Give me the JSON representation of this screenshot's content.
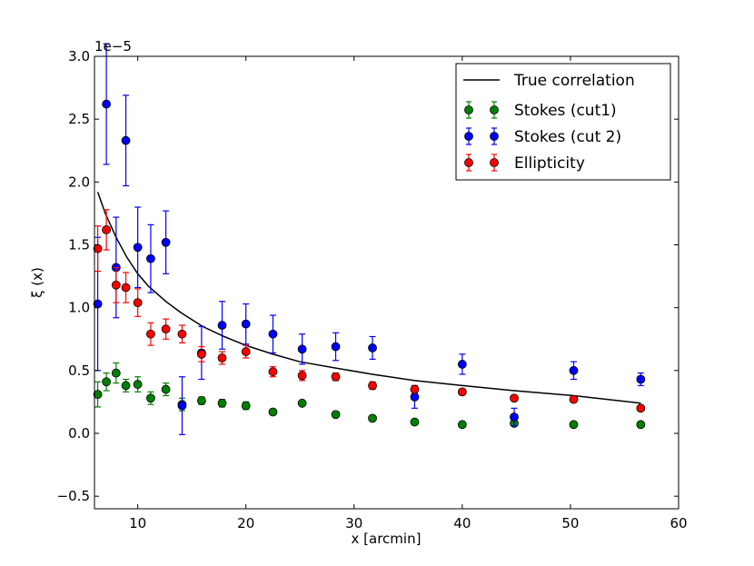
{
  "chart_data": {
    "type": "scatter",
    "title": "",
    "xlabel": "x [arcmin]",
    "ylabel": "ξ (x)",
    "offset_text": "1e−5",
    "xlim": [
      6,
      60
    ],
    "ylim": [
      -0.6,
      3.0
    ],
    "x_ticks": [
      10,
      20,
      30,
      40,
      50,
      60
    ],
    "y_ticks": [
      -0.5,
      0.0,
      0.5,
      1.0,
      1.5,
      2.0,
      2.5,
      3.0
    ],
    "y_tick_labels": [
      "−0.5",
      "0.0",
      "0.5",
      "1.0",
      "1.5",
      "2.0",
      "2.5",
      "3.0"
    ],
    "legend_position": "top-right",
    "line": {
      "name": "True correlation",
      "color": "#000000",
      "x": [
        6.3,
        7,
        8,
        9,
        10,
        11,
        12.6,
        14,
        16,
        18,
        20,
        22.5,
        25,
        28.3,
        31.7,
        35.6,
        40,
        44.8,
        50.3,
        56.5
      ],
      "y": [
        1.92,
        1.75,
        1.56,
        1.4,
        1.27,
        1.17,
        1.05,
        0.96,
        0.85,
        0.77,
        0.7,
        0.63,
        0.57,
        0.52,
        0.47,
        0.42,
        0.38,
        0.34,
        0.3,
        0.24
      ]
    },
    "series": [
      {
        "name": "Stokes (cut1)",
        "color": "#008000",
        "x": [
          6.3,
          7.1,
          8.0,
          8.9,
          10.0,
          11.2,
          12.6,
          14.1,
          15.9,
          17.8,
          20.0,
          22.5,
          25.2,
          28.3,
          31.7,
          35.6,
          40.0,
          44.8,
          50.3,
          56.5
        ],
        "y": [
          0.31,
          0.41,
          0.48,
          0.38,
          0.39,
          0.28,
          0.35,
          0.23,
          0.26,
          0.24,
          0.22,
          0.17,
          0.24,
          0.15,
          0.12,
          0.09,
          0.07,
          0.08,
          0.07,
          0.07
        ],
        "err": [
          0.1,
          0.07,
          0.08,
          0.05,
          0.06,
          0.05,
          0.05,
          0.05,
          0.03,
          0.03,
          0.03,
          0.02,
          0.02,
          0.02,
          0.02,
          0.02,
          0.01,
          0.01,
          0.01,
          0.01
        ]
      },
      {
        "name": "Stokes (cut 2)",
        "color": "#0000ff",
        "x": [
          6.3,
          7.1,
          8.0,
          8.9,
          10.0,
          11.2,
          12.6,
          14.1,
          15.9,
          17.8,
          20.0,
          22.5,
          25.2,
          28.3,
          31.7,
          35.6,
          40.0,
          44.8,
          50.3,
          56.5
        ],
        "y": [
          1.03,
          2.62,
          1.32,
          2.33,
          1.48,
          1.39,
          1.52,
          0.22,
          0.64,
          0.86,
          0.87,
          0.79,
          0.67,
          0.69,
          0.68,
          0.29,
          0.55,
          0.13,
          0.5,
          0.43
        ],
        "err": [
          0.53,
          0.48,
          0.4,
          0.36,
          0.32,
          0.27,
          0.25,
          0.23,
          0.21,
          0.19,
          0.16,
          0.15,
          0.12,
          0.11,
          0.09,
          0.09,
          0.08,
          0.07,
          0.07,
          0.05
        ]
      },
      {
        "name": "Ellipticity",
        "color": "#ff0000",
        "x": [
          6.3,
          7.1,
          8.0,
          8.9,
          10.0,
          11.2,
          12.6,
          14.1,
          15.9,
          17.8,
          20.0,
          22.5,
          25.2,
          28.3,
          31.7,
          35.6,
          40.0,
          44.8,
          50.3,
          56.5
        ],
        "y": [
          1.47,
          1.62,
          1.18,
          1.16,
          1.04,
          0.79,
          0.83,
          0.79,
          0.63,
          0.6,
          0.65,
          0.49,
          0.46,
          0.45,
          0.38,
          0.35,
          0.33,
          0.28,
          0.27,
          0.2
        ],
        "err": [
          0.18,
          0.16,
          0.14,
          0.12,
          0.11,
          0.09,
          0.08,
          0.07,
          0.06,
          0.05,
          0.05,
          0.04,
          0.04,
          0.03,
          0.03,
          0.03,
          0.02,
          0.02,
          0.02,
          0.02
        ]
      }
    ]
  }
}
